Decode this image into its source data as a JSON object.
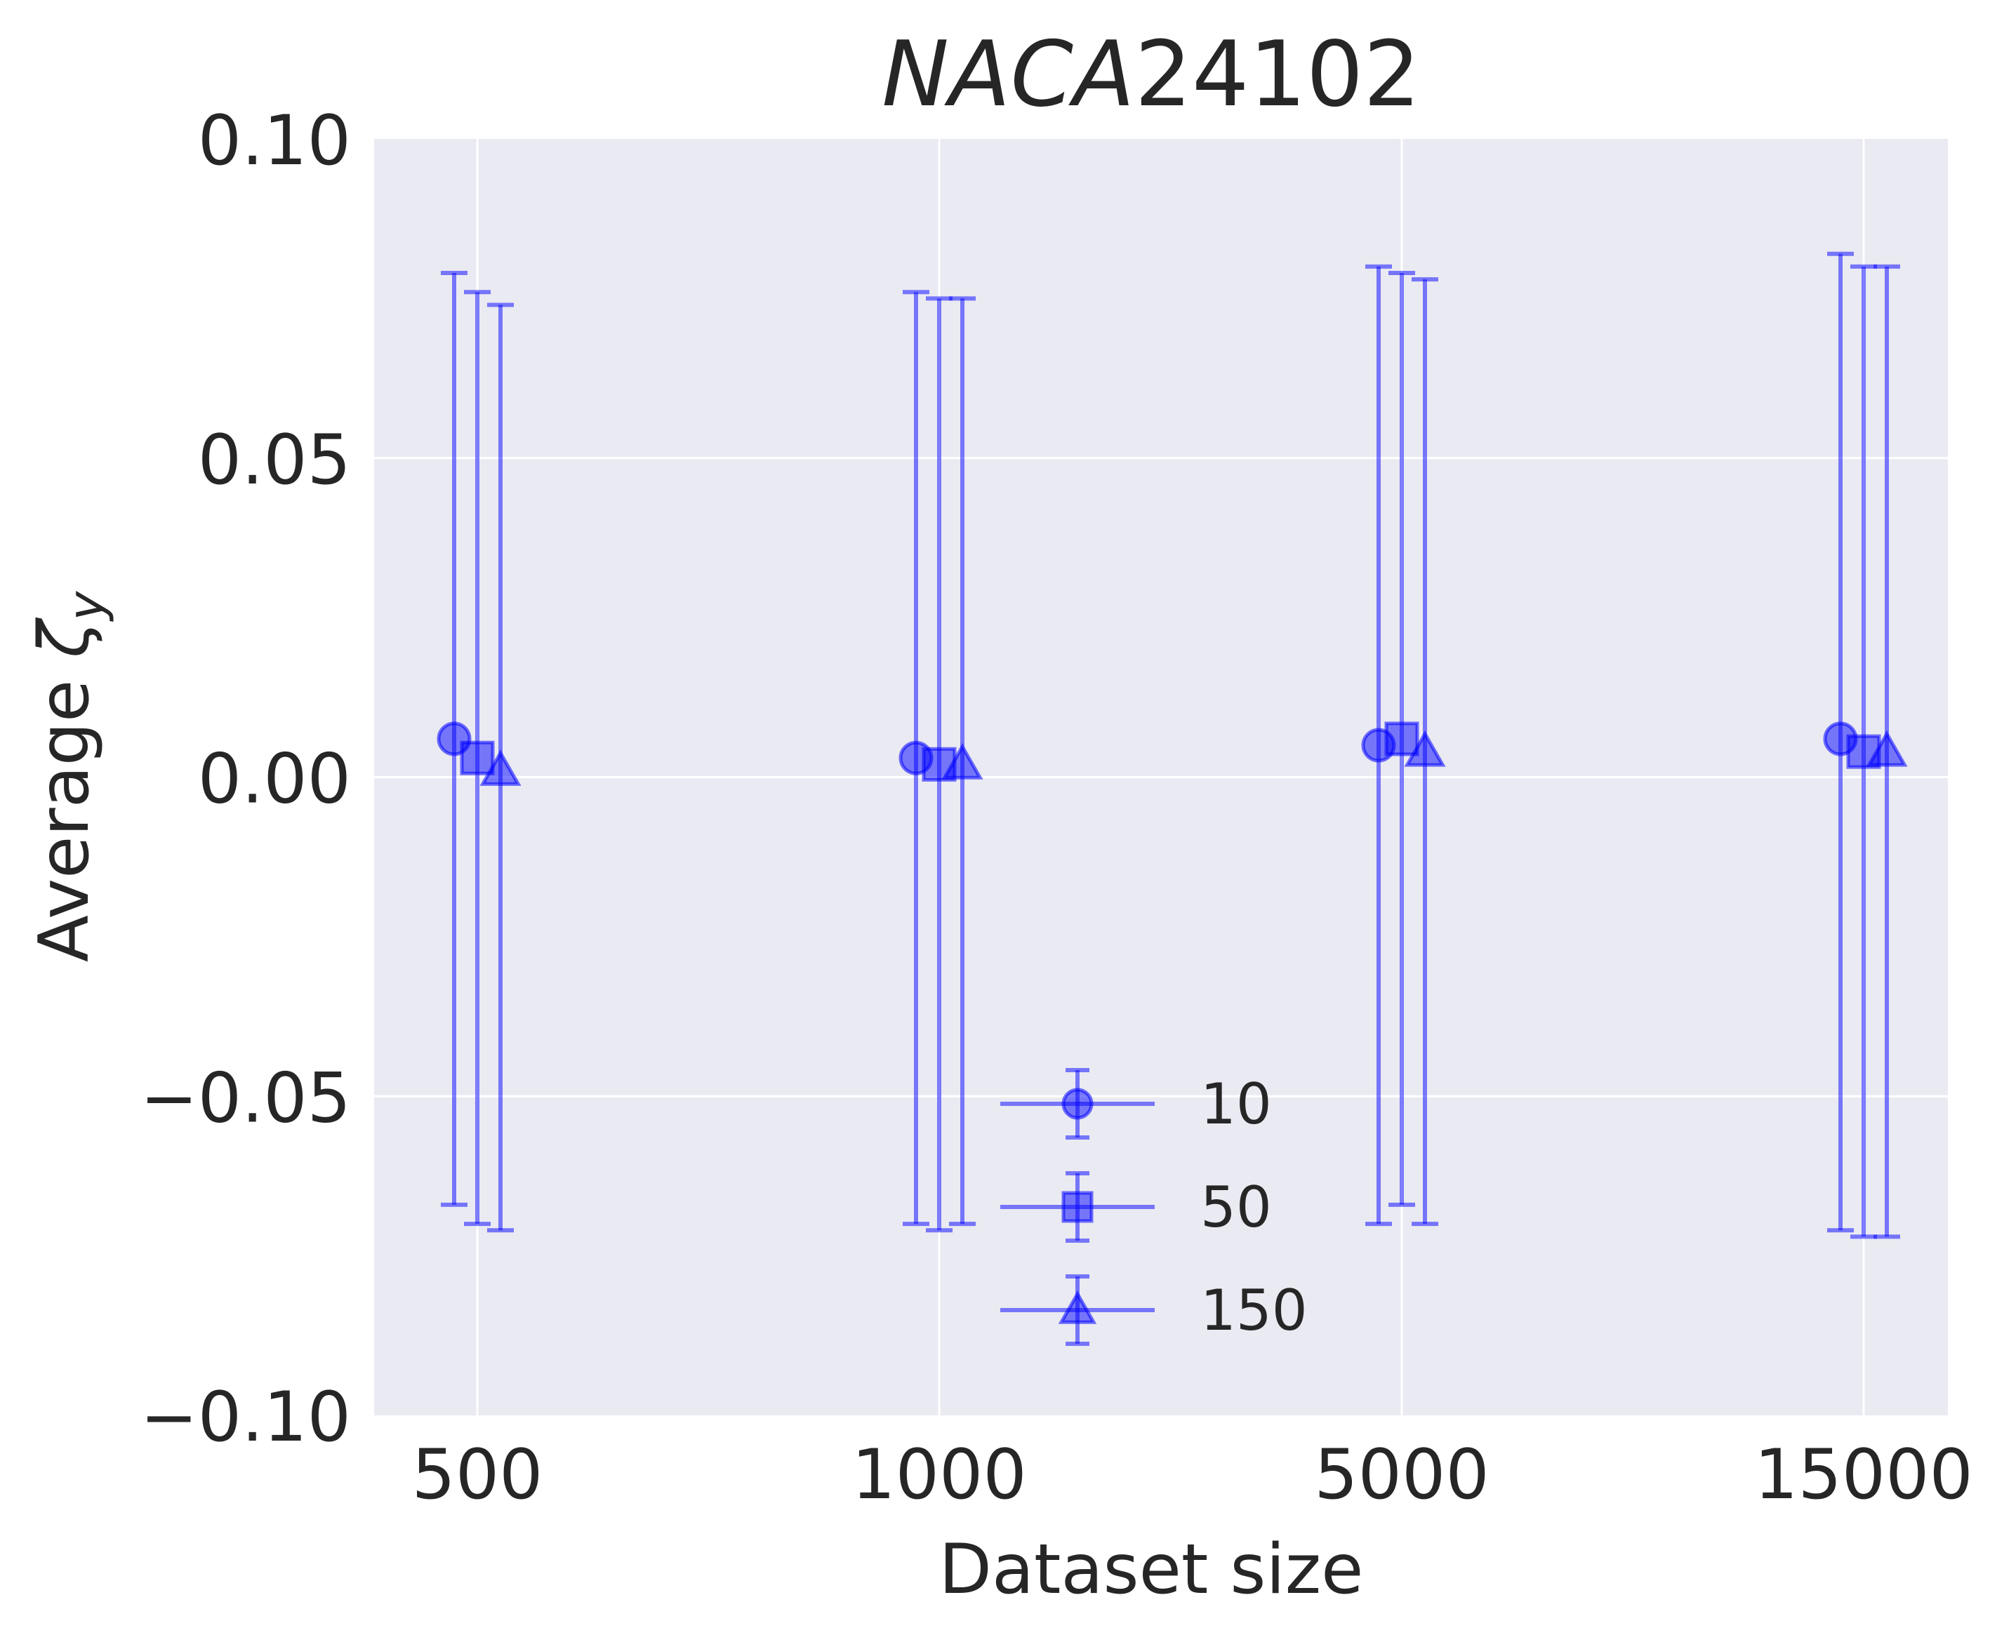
{
  "chart_data": {
    "type": "errorbar",
    "title_italic": "NACA",
    "title_rest": "24102",
    "xlabel": "Dataset size",
    "ylabel_prefix": "Average ",
    "ylabel_symbol": "ζ",
    "ylabel_subscript": "y",
    "categories": [
      "500",
      "1000",
      "5000",
      "15000"
    ],
    "ylim": [
      -0.1,
      0.1
    ],
    "yticks": [
      -0.1,
      -0.05,
      0.0,
      0.05,
      0.1
    ],
    "ytick_labels": [
      "−0.10",
      "−0.05",
      "0.00",
      "0.05",
      "0.10"
    ],
    "grid": true,
    "legend_position": "lower-center",
    "color": "#0000ff",
    "background": "#eaeaf2",
    "series": [
      {
        "name": "10",
        "marker": "circle",
        "mean": [
          0.006,
          0.003,
          0.005,
          0.006
        ],
        "lower": [
          -0.067,
          -0.07,
          -0.07,
          -0.071
        ],
        "upper": [
          0.079,
          0.076,
          0.08,
          0.082
        ]
      },
      {
        "name": "50",
        "marker": "square",
        "mean": [
          0.003,
          0.002,
          0.006,
          0.004
        ],
        "lower": [
          -0.07,
          -0.071,
          -0.067,
          -0.072
        ],
        "upper": [
          0.076,
          0.075,
          0.079,
          0.08
        ]
      },
      {
        "name": "150",
        "marker": "triangle",
        "mean": [
          0.001,
          0.002,
          0.004,
          0.004
        ],
        "lower": [
          -0.071,
          -0.07,
          -0.07,
          -0.072
        ],
        "upper": [
          0.074,
          0.075,
          0.078,
          0.08
        ]
      }
    ]
  }
}
